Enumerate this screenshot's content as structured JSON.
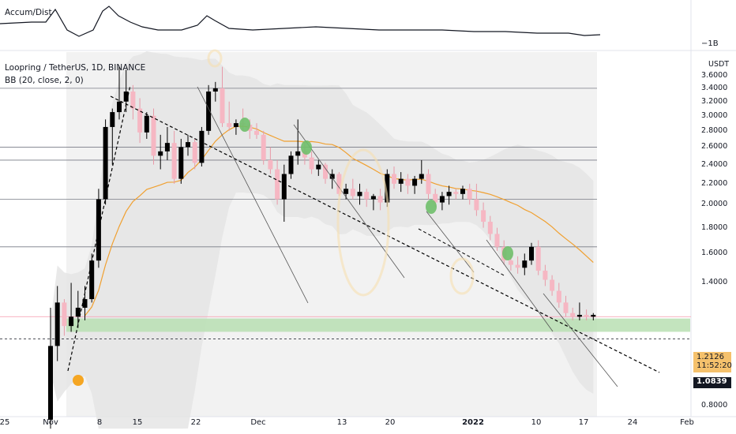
{
  "indicator": {
    "name": "Accum/Dist",
    "scale_label": "−1B"
  },
  "legend": {
    "symbol_line": "Loopring / TetherUS, 1D, BINANCE",
    "bb_line": "BB (20, close, 2, 0)"
  },
  "price_axis": {
    "unit": "USDT",
    "ticks": [
      "3.6000",
      "3.4000",
      "3.2000",
      "3.0000",
      "2.8000",
      "2.6000",
      "2.4000",
      "2.2000",
      "2.0000",
      "1.8000",
      "1.6000",
      "1.4000",
      "0.8000"
    ],
    "current_price": "1.2126",
    "countdown": "11:52:20",
    "marked_price": "1.0839"
  },
  "time_axis": {
    "labels": [
      "25",
      "Nov",
      "8",
      "15",
      "22",
      "Dec",
      "13",
      "20",
      "2022",
      "10",
      "17",
      "24",
      "Feb"
    ]
  },
  "colors": {
    "up_candle": "#000000",
    "down_candle": "#f6b7c3",
    "bb_basis": "#f0a030",
    "zone": "#b9dfb3",
    "pivot_green": "#6fbf6a",
    "pivot_orange": "#f5a623",
    "price_tag": "#f5c16c"
  },
  "chart_data": {
    "type": "candlestick",
    "title": "Loopring / TetherUS, 1D, BINANCE",
    "ylabel": "USDT",
    "ylim": [
      0.75,
      3.75
    ],
    "scale": "log",
    "x": [
      "Nov 1",
      "Nov 2",
      "Nov 3",
      "Nov 4",
      "Nov 5",
      "Nov 6",
      "Nov 7",
      "Nov 8",
      "Nov 9",
      "Nov 10",
      "Nov 11",
      "Nov 12",
      "Nov 13",
      "Nov 14",
      "Nov 15",
      "Nov 16",
      "Nov 17",
      "Nov 18",
      "Nov 19",
      "Nov 20",
      "Nov 21",
      "Nov 22",
      "Nov 23",
      "Nov 24",
      "Nov 25",
      "Nov 26",
      "Nov 27",
      "Nov 28",
      "Nov 29",
      "Nov 30",
      "Dec 1",
      "Dec 2",
      "Dec 3",
      "Dec 4",
      "Dec 5",
      "Dec 6",
      "Dec 7",
      "Dec 8",
      "Dec 9",
      "Dec 10",
      "Dec 11",
      "Dec 12",
      "Dec 13",
      "Dec 14",
      "Dec 15",
      "Dec 16",
      "Dec 17",
      "Dec 18",
      "Dec 19",
      "Dec 20",
      "Dec 21",
      "Dec 22",
      "Dec 23",
      "Dec 24",
      "Dec 25",
      "Dec 26",
      "Dec 27",
      "Dec 28",
      "Dec 29",
      "Dec 30",
      "Dec 31",
      "Jan 1",
      "Jan 2",
      "Jan 3",
      "Jan 4",
      "Jan 5",
      "Jan 6",
      "Jan 7",
      "Jan 8",
      "Jan 9",
      "Jan 10",
      "Jan 11",
      "Jan 12",
      "Jan 13",
      "Jan 14",
      "Jan 15",
      "Jan 16",
      "Jan 17",
      "Jan 18",
      "Jan 19"
    ],
    "ohlc": [
      [
        0.75,
        1.25,
        0.72,
        1.05
      ],
      [
        1.05,
        1.38,
        0.98,
        1.28
      ],
      [
        1.28,
        1.3,
        1.1,
        1.15
      ],
      [
        1.15,
        1.4,
        1.12,
        1.2
      ],
      [
        1.2,
        1.35,
        1.14,
        1.25
      ],
      [
        1.25,
        1.38,
        1.18,
        1.3
      ],
      [
        1.3,
        1.6,
        1.28,
        1.55
      ],
      [
        1.55,
        2.15,
        1.5,
        2.05
      ],
      [
        2.05,
        2.95,
        2.0,
        2.85
      ],
      [
        2.85,
        3.1,
        2.4,
        3.05
      ],
      [
        3.05,
        3.75,
        2.95,
        3.2
      ],
      [
        3.2,
        3.7,
        3.05,
        3.35
      ],
      [
        3.35,
        3.45,
        2.95,
        3.1
      ],
      [
        3.1,
        3.25,
        2.65,
        2.78
      ],
      [
        2.78,
        3.05,
        2.7,
        3.0
      ],
      [
        3.0,
        3.1,
        2.4,
        2.5
      ],
      [
        2.5,
        2.75,
        2.35,
        2.55
      ],
      [
        2.55,
        2.85,
        2.45,
        2.65
      ],
      [
        2.65,
        2.8,
        2.2,
        2.25
      ],
      [
        2.25,
        2.7,
        2.2,
        2.6
      ],
      [
        2.6,
        2.75,
        2.5,
        2.66
      ],
      [
        2.66,
        2.7,
        2.35,
        2.42
      ],
      [
        2.42,
        2.85,
        2.38,
        2.8
      ],
      [
        2.8,
        3.45,
        2.75,
        3.35
      ],
      [
        3.35,
        3.5,
        3.2,
        3.4
      ],
      [
        3.4,
        3.75,
        2.85,
        2.9
      ],
      [
        2.9,
        3.2,
        2.8,
        2.85
      ],
      [
        2.85,
        2.95,
        2.75,
        2.9
      ],
      [
        2.9,
        3.1,
        2.8,
        2.88
      ],
      [
        2.88,
        2.95,
        2.7,
        2.8
      ],
      [
        2.8,
        2.9,
        2.7,
        2.75
      ],
      [
        2.75,
        2.8,
        2.4,
        2.45
      ],
      [
        2.45,
        2.6,
        2.3,
        2.35
      ],
      [
        2.35,
        2.45,
        2.0,
        2.05
      ],
      [
        2.05,
        2.4,
        1.85,
        2.3
      ],
      [
        2.3,
        2.55,
        2.25,
        2.5
      ],
      [
        2.5,
        2.95,
        2.4,
        2.55
      ],
      [
        2.55,
        2.65,
        2.4,
        2.48
      ],
      [
        2.48,
        2.55,
        2.3,
        2.35
      ],
      [
        2.35,
        2.45,
        2.28,
        2.4
      ],
      [
        2.4,
        2.42,
        2.2,
        2.25
      ],
      [
        2.25,
        2.35,
        2.15,
        2.3
      ],
      [
        2.3,
        2.32,
        2.08,
        2.1
      ],
      [
        2.1,
        2.2,
        2.05,
        2.15
      ],
      [
        2.15,
        2.25,
        2.05,
        2.08
      ],
      [
        2.08,
        2.2,
        2.0,
        2.12
      ],
      [
        2.12,
        2.15,
        1.98,
        2.05
      ],
      [
        2.05,
        2.1,
        1.95,
        2.08
      ],
      [
        2.08,
        2.15,
        1.95,
        2.02
      ],
      [
        2.02,
        2.35,
        1.98,
        2.3
      ],
      [
        2.3,
        2.38,
        2.15,
        2.2
      ],
      [
        2.2,
        2.32,
        2.12,
        2.25
      ],
      [
        2.25,
        2.3,
        2.1,
        2.18
      ],
      [
        2.18,
        2.28,
        2.1,
        2.25
      ],
      [
        2.25,
        2.45,
        2.2,
        2.3
      ],
      [
        2.3,
        2.35,
        2.05,
        2.1
      ],
      [
        2.1,
        2.15,
        1.98,
        2.02
      ],
      [
        2.02,
        2.12,
        1.95,
        2.08
      ],
      [
        2.08,
        2.18,
        2.0,
        2.12
      ],
      [
        2.12,
        2.15,
        2.05,
        2.1
      ],
      [
        2.1,
        2.18,
        2.05,
        2.15
      ],
      [
        2.15,
        2.2,
        2.0,
        2.05
      ],
      [
        2.05,
        2.2,
        1.9,
        1.95
      ],
      [
        1.95,
        2.02,
        1.8,
        1.85
      ],
      [
        1.85,
        1.9,
        1.7,
        1.75
      ],
      [
        1.75,
        1.8,
        1.62,
        1.65
      ],
      [
        1.65,
        1.7,
        1.52,
        1.55
      ],
      [
        1.55,
        1.6,
        1.48,
        1.52
      ],
      [
        1.52,
        1.58,
        1.46,
        1.5
      ],
      [
        1.5,
        1.6,
        1.45,
        1.55
      ],
      [
        1.55,
        1.68,
        1.52,
        1.65
      ],
      [
        1.65,
        1.7,
        1.45,
        1.48
      ],
      [
        1.48,
        1.52,
        1.38,
        1.42
      ],
      [
        1.42,
        1.45,
        1.32,
        1.35
      ],
      [
        1.35,
        1.4,
        1.25,
        1.28
      ],
      [
        1.28,
        1.32,
        1.2,
        1.22
      ],
      [
        1.22,
        1.25,
        1.18,
        1.2
      ],
      [
        1.2,
        1.28,
        1.18,
        1.21
      ],
      [
        1.21,
        1.24,
        1.18,
        1.2
      ],
      [
        1.2,
        1.22,
        1.18,
        1.21
      ]
    ],
    "horizontal_levels": [
      3.4,
      2.6,
      2.45,
      2.05,
      1.65
    ],
    "support_zone": [
      1.12,
      1.19
    ]
  }
}
